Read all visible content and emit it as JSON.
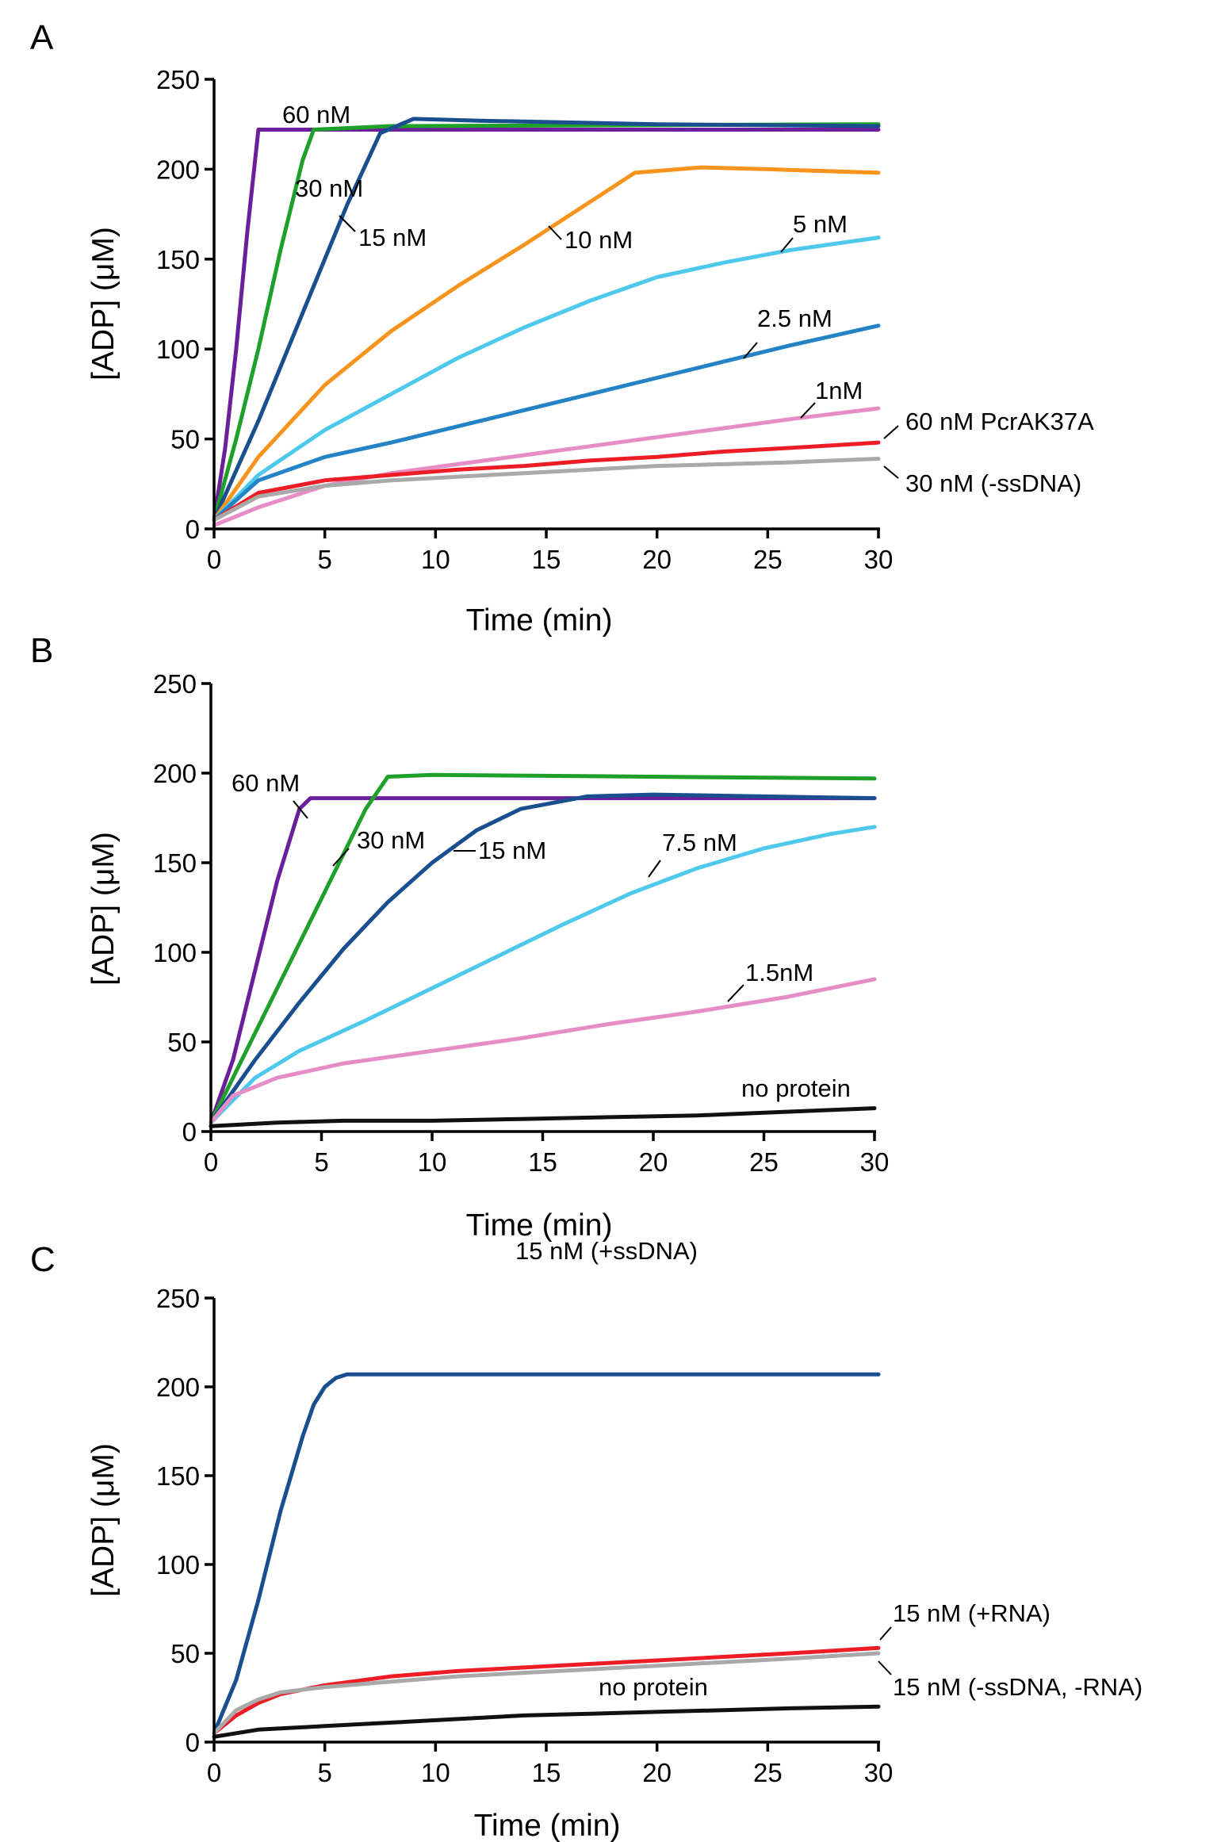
{
  "chart_data": [
    {
      "panel": "A",
      "type": "line",
      "xlabel": "Time (min)",
      "ylabel": "[ADP] (μM)",
      "xlim": [
        0,
        30
      ],
      "ylim": [
        0,
        250
      ],
      "xticks": [
        0,
        5,
        10,
        15,
        20,
        25,
        30
      ],
      "yticks": [
        0,
        50,
        100,
        150,
        200,
        250
      ],
      "series": [
        {
          "name": "60 nM",
          "color": "#6b1f9a",
          "x": [
            0,
            0.5,
            1,
            1.5,
            2,
            30
          ],
          "y": [
            5,
            45,
            100,
            165,
            222,
            222
          ]
        },
        {
          "name": "30 nM",
          "color": "#1fa02a",
          "x": [
            0,
            1,
            2,
            3,
            4,
            4.5,
            8,
            30
          ],
          "y": [
            5,
            50,
            100,
            155,
            205,
            222,
            224,
            225
          ]
        },
        {
          "name": "15 nM",
          "color": "#1a4f8f",
          "x": [
            0,
            2,
            4,
            6,
            7.5,
            9,
            12,
            20,
            30
          ],
          "y": [
            5,
            60,
            120,
            180,
            220,
            228,
            227,
            225,
            224
          ]
        },
        {
          "name": "10 nM",
          "color": "#f7941d",
          "x": [
            0,
            2,
            5,
            8,
            11,
            14,
            17,
            19,
            22,
            25,
            30
          ],
          "y": [
            5,
            40,
            80,
            110,
            135,
            158,
            182,
            198,
            201,
            200,
            198
          ]
        },
        {
          "name": "5 nM",
          "color": "#4ec9ec",
          "x": [
            0,
            2,
            5,
            8,
            11,
            14,
            17,
            20,
            23,
            26,
            30
          ],
          "y": [
            5,
            30,
            55,
            75,
            95,
            112,
            127,
            140,
            148,
            155,
            162
          ]
        },
        {
          "name": "2.5 nM",
          "color": "#2383c6",
          "x": [
            0,
            2,
            5,
            8,
            11,
            14,
            17,
            20,
            23,
            26,
            30
          ],
          "y": [
            5,
            27,
            40,
            48,
            57,
            66,
            75,
            84,
            93,
            102,
            113
          ]
        },
        {
          "name": "1nM",
          "color": "#e58dc4",
          "x": [
            0,
            2,
            5,
            8,
            11,
            14,
            17,
            20,
            23,
            26,
            30
          ],
          "y": [
            2,
            12,
            24,
            31,
            36,
            41,
            46,
            51,
            56,
            61,
            67
          ]
        },
        {
          "name": "60 nM PcrAK37A",
          "color": "#ee1c25",
          "x": [
            0,
            2,
            5,
            8,
            11,
            14,
            17,
            20,
            23,
            26,
            30
          ],
          "y": [
            5,
            20,
            27,
            30,
            33,
            35,
            38,
            40,
            43,
            45,
            48
          ]
        },
        {
          "name": "30 nM (-ssDNA)",
          "color": "#a9a9a9",
          "x": [
            0,
            2,
            5,
            8,
            11,
            14,
            17,
            20,
            23,
            26,
            30
          ],
          "y": [
            5,
            18,
            24,
            27,
            29,
            31,
            33,
            35,
            36,
            37,
            39
          ]
        }
      ],
      "annotations": [
        "60 nM",
        "30 nM",
        "15 nM",
        "10 nM",
        "5 nM",
        "2.5 nM",
        "1nM",
        "60 nM PcrAK37A",
        "30 nM (-ssDNA)"
      ]
    },
    {
      "panel": "B",
      "type": "line",
      "xlabel": "Time (min)",
      "ylabel": "[ADP] (μM)",
      "xlim": [
        0,
        30
      ],
      "ylim": [
        0,
        250
      ],
      "xticks": [
        0,
        5,
        10,
        15,
        20,
        25,
        30
      ],
      "yticks": [
        0,
        50,
        100,
        150,
        200,
        250
      ],
      "series": [
        {
          "name": "60 nM",
          "color": "#6b1f9a",
          "x": [
            0,
            1,
            2,
            3,
            4,
            4.5,
            30
          ],
          "y": [
            5,
            40,
            90,
            140,
            180,
            186,
            186
          ]
        },
        {
          "name": "30 nM",
          "color": "#1fa02a",
          "x": [
            0,
            1,
            2,
            3,
            4,
            5,
            6,
            7,
            8,
            10,
            30
          ],
          "y": [
            5,
            30,
            55,
            80,
            105,
            130,
            155,
            180,
            198,
            199,
            197
          ]
        },
        {
          "name": "15 nM",
          "color": "#1a4f8f",
          "x": [
            0,
            2,
            4,
            6,
            8,
            10,
            12,
            14,
            17,
            20,
            30
          ],
          "y": [
            5,
            40,
            72,
            102,
            128,
            150,
            168,
            180,
            187,
            188,
            186
          ]
        },
        {
          "name": "7.5 nM",
          "color": "#4ec9ec",
          "x": [
            0,
            2,
            4,
            7,
            10,
            13,
            16,
            19,
            22,
            25,
            28,
            30
          ],
          "y": [
            5,
            30,
            45,
            62,
            80,
            98,
            116,
            133,
            147,
            158,
            166,
            170
          ]
        },
        {
          "name": "1.5nM",
          "color": "#e58dc4",
          "x": [
            0,
            1,
            3,
            6,
            10,
            14,
            18,
            22,
            26,
            30
          ],
          "y": [
            5,
            20,
            30,
            38,
            45,
            52,
            60,
            67,
            75,
            85
          ]
        },
        {
          "name": "no protein",
          "color": "#111111",
          "x": [
            0,
            3,
            6,
            10,
            14,
            18,
            22,
            26,
            30
          ],
          "y": [
            3,
            5,
            6,
            6,
            7,
            8,
            9,
            11,
            13
          ]
        }
      ],
      "annotations": [
        "60 nM",
        "30 nM",
        "15 nM",
        "7.5 nM",
        "1.5nM",
        "no protein"
      ]
    },
    {
      "panel": "C",
      "type": "line",
      "xlabel": "Time (min)",
      "ylabel": "[ADP] (μM)",
      "xlim": [
        0,
        30
      ],
      "ylim": [
        0,
        250
      ],
      "xticks": [
        0,
        5,
        10,
        15,
        20,
        25,
        30
      ],
      "yticks": [
        0,
        50,
        100,
        150,
        200,
        250
      ],
      "series": [
        {
          "name": "15 nM (+ssDNA)",
          "color": "#1a4f8f",
          "x": [
            0,
            1,
            2,
            3,
            4,
            4.5,
            5,
            5.5,
            6,
            30
          ],
          "y": [
            5,
            35,
            80,
            130,
            172,
            190,
            200,
            205,
            207,
            207
          ]
        },
        {
          "name": "15 nM (+RNA)",
          "color": "#ee1c25",
          "x": [
            0,
            1,
            2,
            3,
            5,
            8,
            11,
            14,
            17,
            20,
            23,
            26,
            30
          ],
          "y": [
            5,
            15,
            22,
            27,
            32,
            37,
            40,
            42,
            44,
            46,
            48,
            50,
            53
          ]
        },
        {
          "name": "15 nM (-ssDNA, -RNA)",
          "color": "#a9a9a9",
          "x": [
            0,
            1,
            2,
            3,
            5,
            8,
            11,
            14,
            17,
            20,
            23,
            26,
            30
          ],
          "y": [
            5,
            18,
            24,
            28,
            31,
            34,
            37,
            39,
            41,
            43,
            45,
            47,
            50
          ]
        },
        {
          "name": "no protein",
          "color": "#111111",
          "x": [
            0,
            2,
            5,
            8,
            11,
            14,
            17,
            20,
            23,
            26,
            30
          ],
          "y": [
            3,
            7,
            9,
            11,
            13,
            15,
            16,
            17,
            18,
            19,
            20
          ]
        }
      ],
      "annotations": [
        "15 nM (+ssDNA)",
        "15 nM (+RNA)",
        "15 nM (-ssDNA, -RNA)",
        "no protein"
      ]
    }
  ]
}
